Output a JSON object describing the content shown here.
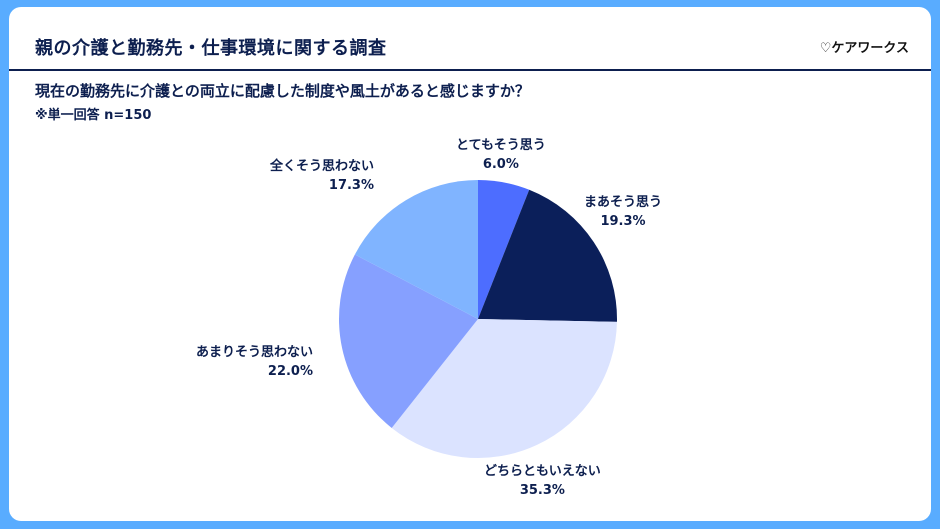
{
  "header": {
    "title": "親の介護と勤務先・仕事環境に関する調査",
    "brand": "♡ケアワークス"
  },
  "question": {
    "text": "現在の勤務先に介護との両立に配慮した制度や風土があると感じますか？",
    "note": "※単一回答 n=150"
  },
  "chart_data": {
    "type": "pie",
    "title": "現在の勤務先に介護との両立に配慮した制度や風土があると感じますか？",
    "subtitle": "※単一回答 n=150",
    "categories": [
      "とてもそう思う",
      "まあそう思う",
      "どちらともいえない",
      "あまりそう思わない",
      "全くそう思わない"
    ],
    "values": [
      6.0,
      19.3,
      35.3,
      22.0,
      17.3
    ],
    "unit": "%",
    "colors": [
      "#4d6dff",
      "#0b1f5a",
      "#dbe3ff",
      "#86a0ff",
      "#80b4ff"
    ],
    "start_angle": "12 o'clock, clockwise",
    "labels": [
      {
        "label": "とてもそう思う",
        "pct": "6.0%"
      },
      {
        "label": "まあそう思う",
        "pct": "19.3%"
      },
      {
        "label": "どちらともいえない",
        "pct": "35.3%"
      },
      {
        "label": "あまりそう思わない",
        "pct": "22.0%"
      },
      {
        "label": "全くそう思わない",
        "pct": "17.3%"
      }
    ]
  }
}
